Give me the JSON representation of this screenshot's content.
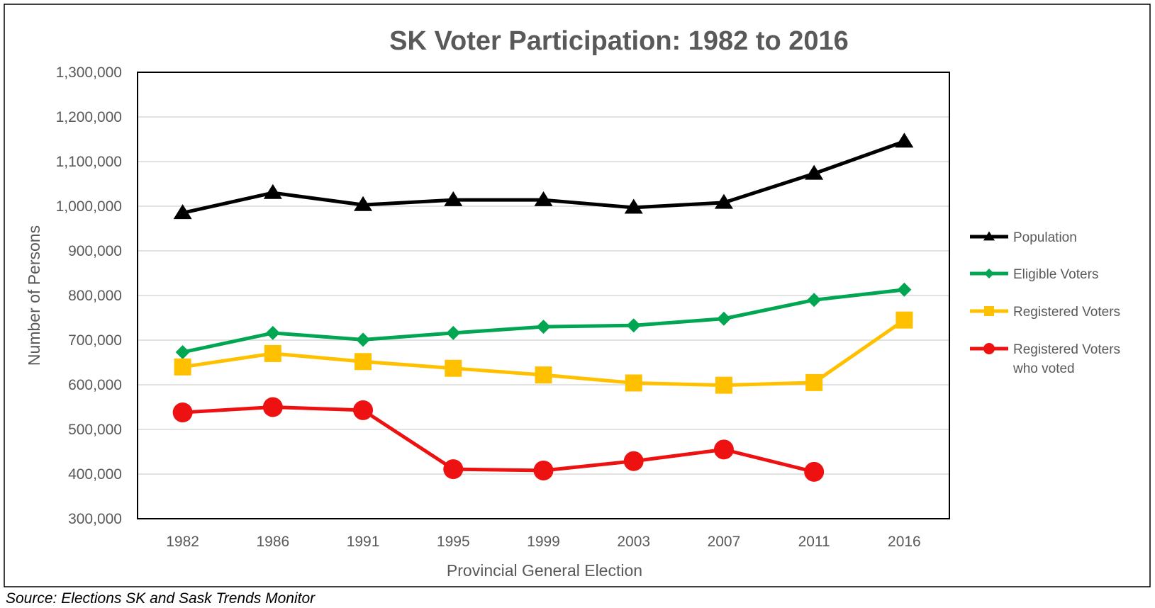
{
  "chart_data": {
    "type": "line",
    "title": "SK Voter Participation: 1982 to 2016",
    "xlabel": "Provincial General Election",
    "ylabel": "Number of Persons",
    "categories": [
      "1982",
      "1986",
      "1991",
      "1995",
      "1999",
      "2003",
      "2007",
      "2011",
      "2016"
    ],
    "ylim": [
      300000,
      1300000
    ],
    "yticks": [
      300000,
      400000,
      500000,
      600000,
      700000,
      800000,
      900000,
      1000000,
      1100000,
      1200000,
      1300000
    ],
    "ytick_labels": [
      "300,000",
      "400,000",
      "500,000",
      "600,000",
      "700,000",
      "800,000",
      "900,000",
      "1,000,000",
      "1,100,000",
      "1,200,000",
      "1,300,000"
    ],
    "grid": true,
    "legend_position": "right",
    "series": [
      {
        "name": "Population",
        "name_lines": [
          "Population"
        ],
        "color": "#000000",
        "marker": "triangle",
        "values": [
          985000,
          1030000,
          1003000,
          1014000,
          1014000,
          997000,
          1008000,
          1073000,
          1145000
        ]
      },
      {
        "name": "Eligible Voters",
        "name_lines": [
          "Eligible Voters"
        ],
        "color": "#00A651",
        "marker": "diamond",
        "values": [
          673000,
          716000,
          701000,
          716000,
          730000,
          733000,
          748000,
          790000,
          813000
        ]
      },
      {
        "name": "Registered Voters",
        "name_lines": [
          "Registered Voters"
        ],
        "color": "#FFC000",
        "marker": "square",
        "values": [
          640000,
          670000,
          652000,
          637000,
          622000,
          604000,
          599000,
          605000,
          745000
        ]
      },
      {
        "name": "Registered Voters who voted",
        "name_lines": [
          "Registered Voters",
          "who voted"
        ],
        "color": "#EE1111",
        "marker": "circle",
        "values": [
          538000,
          550000,
          543000,
          411000,
          408000,
          429000,
          455000,
          405000,
          null
        ]
      }
    ]
  },
  "source": "Source: Elections SK and Sask Trends Monitor"
}
